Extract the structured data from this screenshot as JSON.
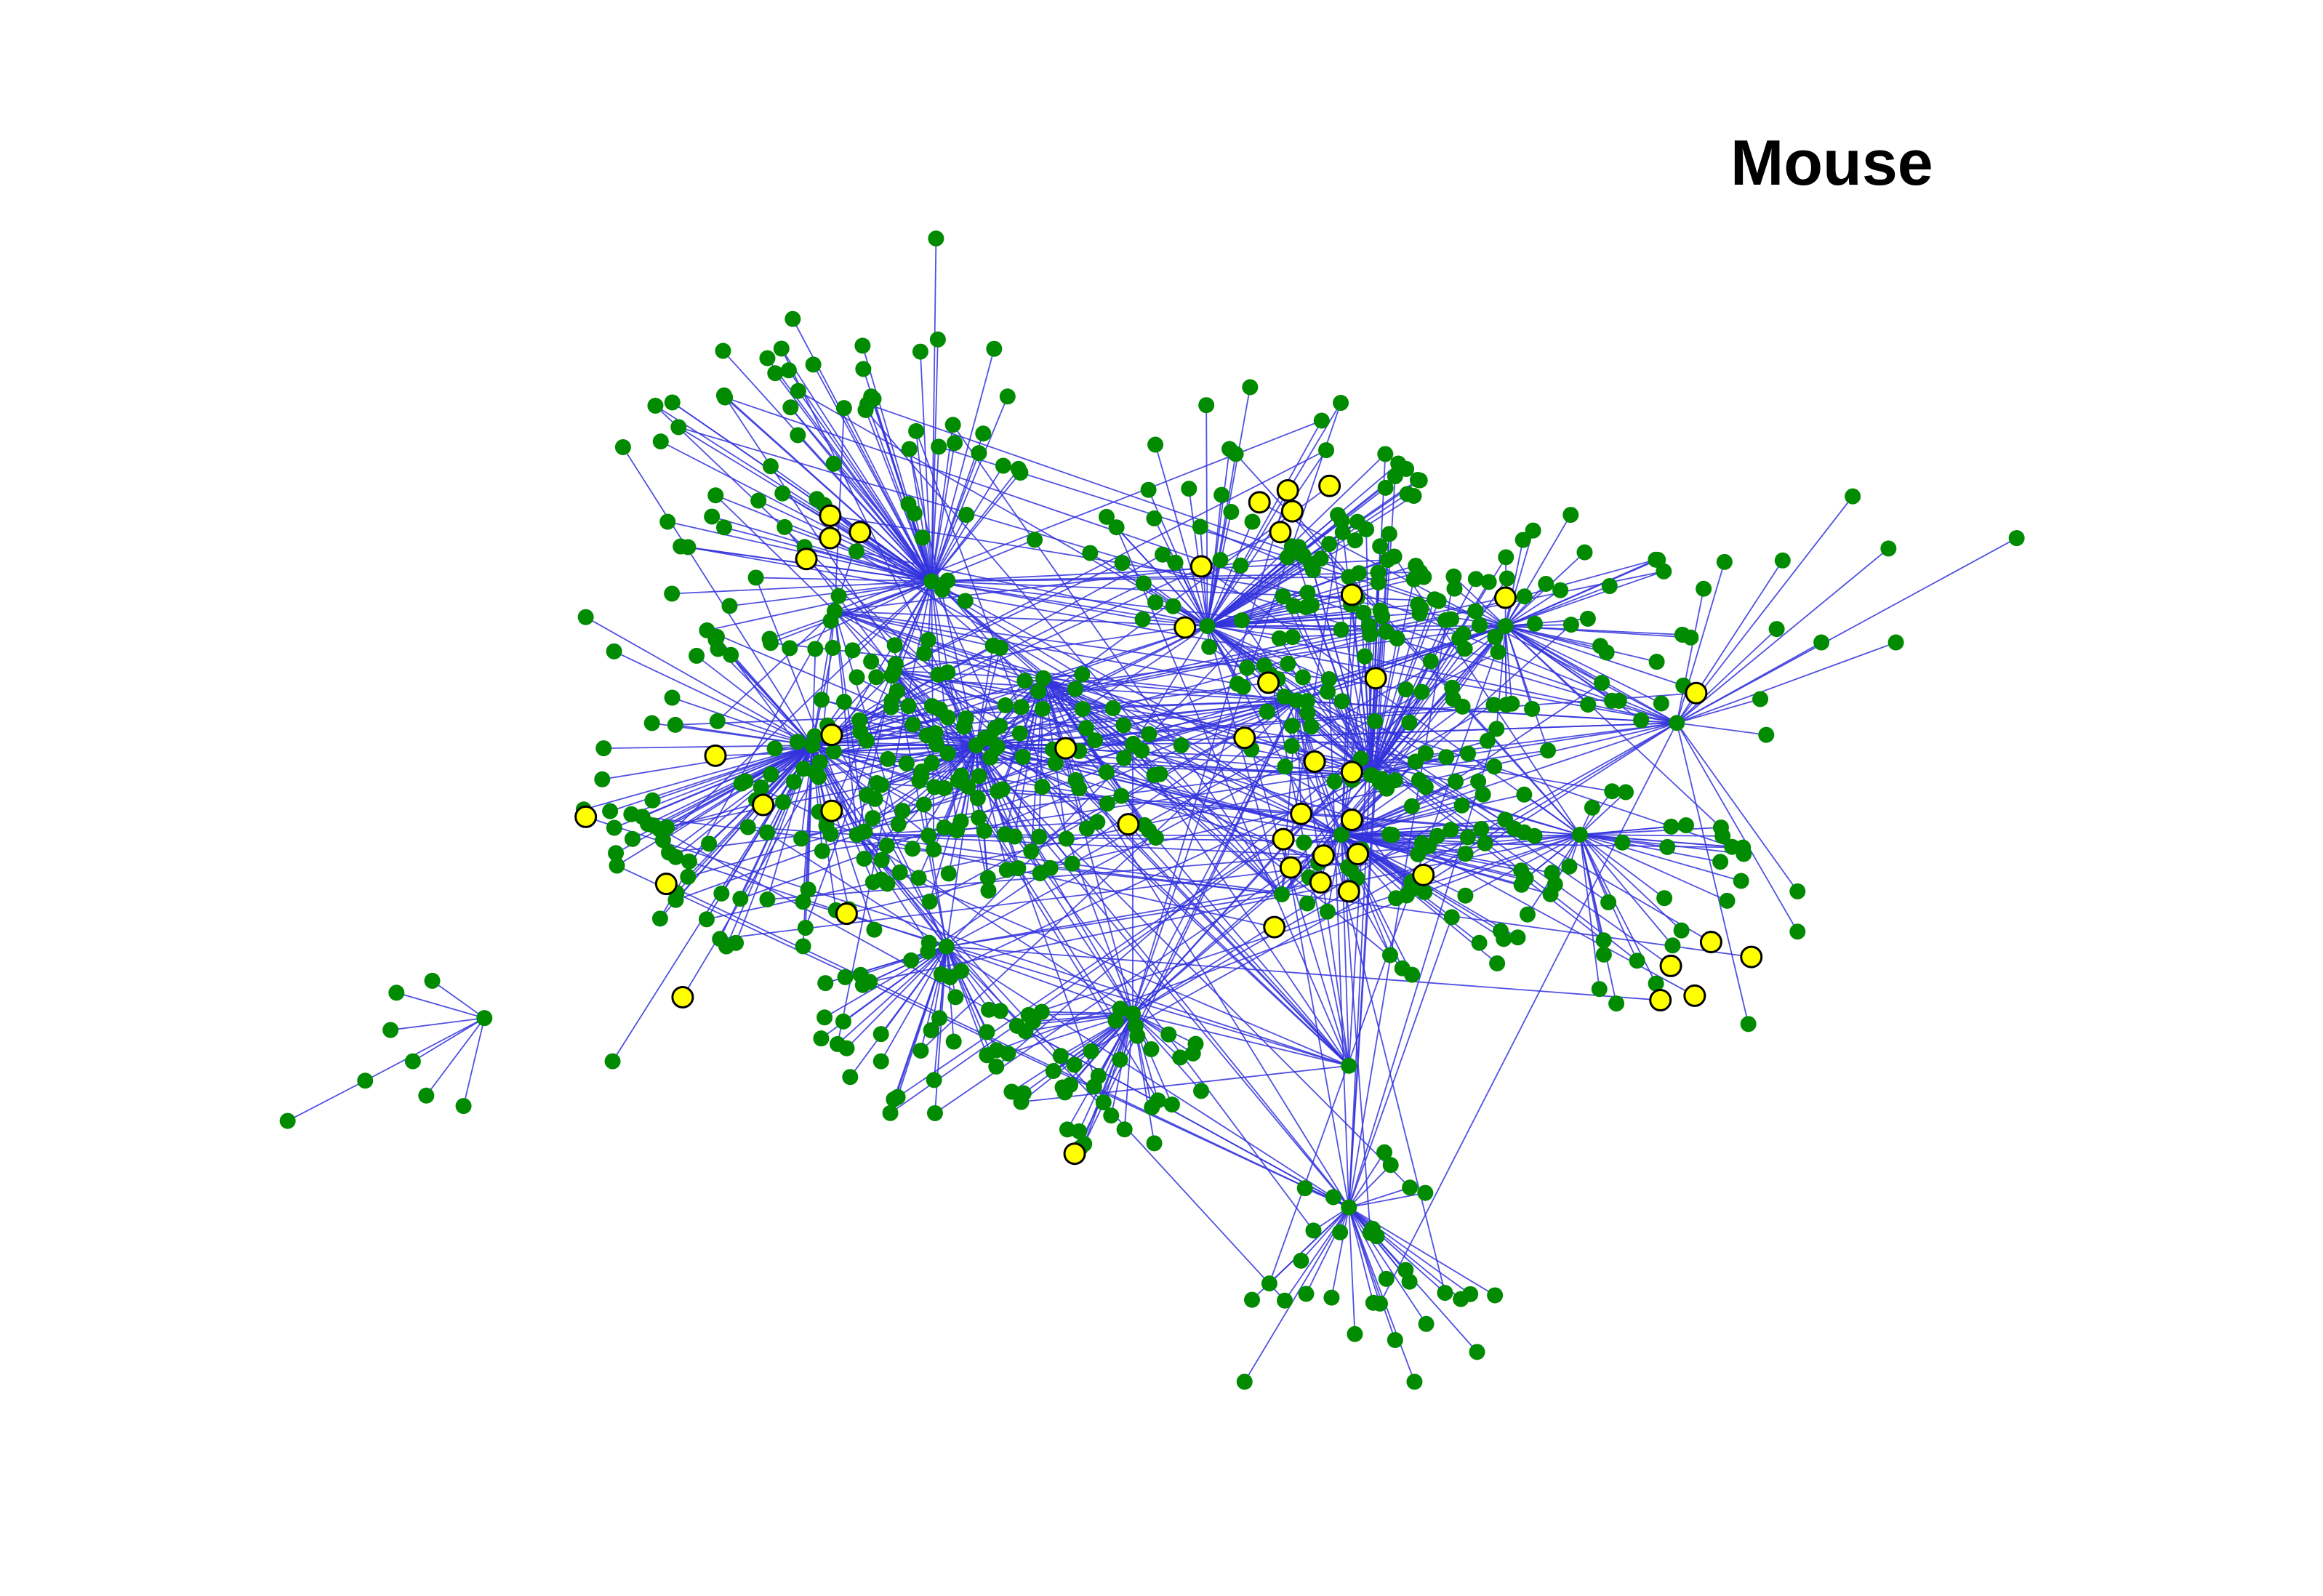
{
  "figure": {
    "title": "Mouse"
  },
  "legend_colors": {
    "node_default": "#008b00",
    "node_highlight": "#ffff00",
    "node_highlight_stroke": "#000000",
    "edge": "#3333dd"
  }
}
